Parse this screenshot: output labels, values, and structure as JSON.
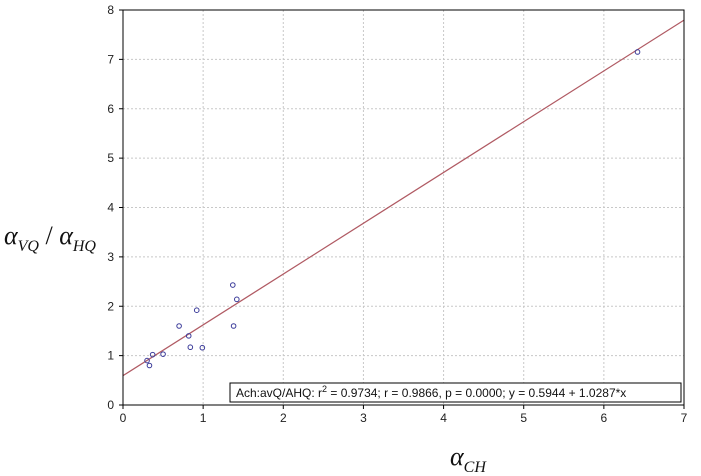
{
  "chart_data": {
    "type": "scatter",
    "title": "",
    "xlabel": "α_CH",
    "ylabel": "α_VQ/α_HQ",
    "xlim": [
      0,
      7
    ],
    "ylim": [
      0,
      8
    ],
    "xticks": [
      "0",
      "1",
      "2",
      "3",
      "4",
      "5",
      "6",
      "7"
    ],
    "yticks": [
      "0",
      "1",
      "2",
      "3",
      "4",
      "5",
      "6",
      "7",
      "8"
    ],
    "grid": true,
    "points": [
      {
        "x": 0.3,
        "y": 0.9
      },
      {
        "x": 0.33,
        "y": 0.8
      },
      {
        "x": 0.37,
        "y": 1.02
      },
      {
        "x": 0.5,
        "y": 1.03
      },
      {
        "x": 0.7,
        "y": 1.6
      },
      {
        "x": 0.82,
        "y": 1.4
      },
      {
        "x": 0.84,
        "y": 1.17
      },
      {
        "x": 0.92,
        "y": 1.92
      },
      {
        "x": 0.99,
        "y": 1.16
      },
      {
        "x": 1.37,
        "y": 2.43
      },
      {
        "x": 1.38,
        "y": 1.6
      },
      {
        "x": 1.42,
        "y": 2.14
      },
      {
        "x": 6.42,
        "y": 7.15
      }
    ],
    "fit": {
      "intercept": 0.5944,
      "slope": 1.0287
    },
    "annotation": {
      "prefix": "Ach:avQ/AHQ:  r",
      "sup": "2",
      "rest": " = 0.9734;  r = 0.9866, p = 0.0000;  y = 0.5944 + 1.0287*x"
    },
    "colors": {
      "plot_bg": "#ffffff",
      "outer_bg": "#ffffff",
      "grid": "#c8c8c8",
      "line": "#b05a63",
      "marker": "#3c3c9a"
    }
  }
}
